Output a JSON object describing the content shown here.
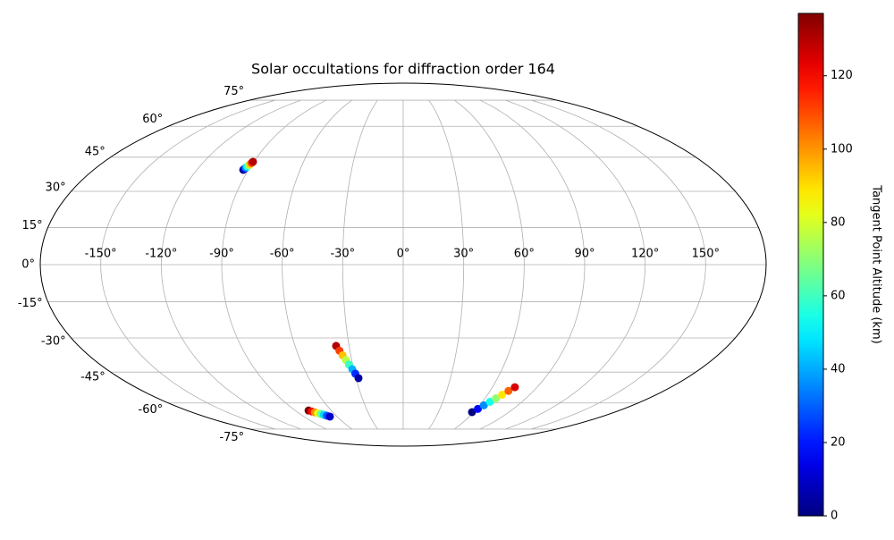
{
  "chart_data": {
    "type": "scatter",
    "projection": "mollweide",
    "title": "Solar occultations for diffraction order 164",
    "grid": true,
    "colormap": "jet",
    "xticks": [
      {
        "value": -150,
        "label": "-150°"
      },
      {
        "value": -120,
        "label": "-120°"
      },
      {
        "value": -90,
        "label": "-90°"
      },
      {
        "value": -60,
        "label": "-60°"
      },
      {
        "value": -30,
        "label": "-30°"
      },
      {
        "value": 0,
        "label": "0°"
      },
      {
        "value": 30,
        "label": "30°"
      },
      {
        "value": 60,
        "label": "60°"
      },
      {
        "value": 90,
        "label": "90°"
      },
      {
        "value": 120,
        "label": "120°"
      },
      {
        "value": 150,
        "label": "150°"
      }
    ],
    "yticks": [
      {
        "value": -75,
        "label": "-75°"
      },
      {
        "value": -60,
        "label": "-60°"
      },
      {
        "value": -45,
        "label": "-45°"
      },
      {
        "value": -30,
        "label": "-30°"
      },
      {
        "value": -15,
        "label": "-15°"
      },
      {
        "value": 0,
        "label": "0°"
      },
      {
        "value": 15,
        "label": "15°"
      },
      {
        "value": 30,
        "label": "30°"
      },
      {
        "value": 45,
        "label": "45°"
      },
      {
        "value": 60,
        "label": "60°"
      },
      {
        "value": 75,
        "label": "75°"
      }
    ],
    "colorbar": {
      "label": "Tangent Point Altitude (km)",
      "lim": [
        0,
        137
      ],
      "ticks": [
        0,
        20,
        40,
        60,
        80,
        100,
        120
      ]
    },
    "series": [
      {
        "x": [
          -93.0,
          -92.6,
          -92.3,
          -91.9,
          -91.5,
          -91.1,
          -90.8,
          -90.4,
          -37.2,
          -35.9,
          -34.7,
          -33.4,
          -32.2,
          -30.9,
          -29.7,
          -28.4,
          -78.9,
          -77.1,
          -75.4,
          -73.6,
          -71.8,
          -70.0,
          -68.3,
          -66.5,
          58.6,
          61.0,
          63.3,
          65.7,
          68.0,
          70.4,
          72.7,
          75.1
        ],
        "y": [
          39.3,
          39.8,
          40.3,
          40.8,
          41.4,
          41.9,
          42.4,
          42.9,
          -33.4,
          -35.5,
          -37.5,
          -39.6,
          -41.6,
          -43.7,
          -45.7,
          -47.8,
          -64.0,
          -64.5,
          -65.0,
          -65.5,
          -65.9,
          -66.4,
          -66.9,
          -67.4,
          -64.9,
          -63.1,
          -61.2,
          -59.4,
          -57.6,
          -55.8,
          -53.9,
          -52.1
        ],
        "c": [
          0,
          19,
          37,
          56,
          74,
          93,
          111,
          130,
          130,
          112,
          94,
          76,
          59,
          41,
          23,
          5,
          137,
          119,
          101,
          83,
          64,
          46,
          28,
          10,
          0,
          18,
          36,
          54,
          71,
          89,
          107,
          125
        ]
      }
    ]
  }
}
